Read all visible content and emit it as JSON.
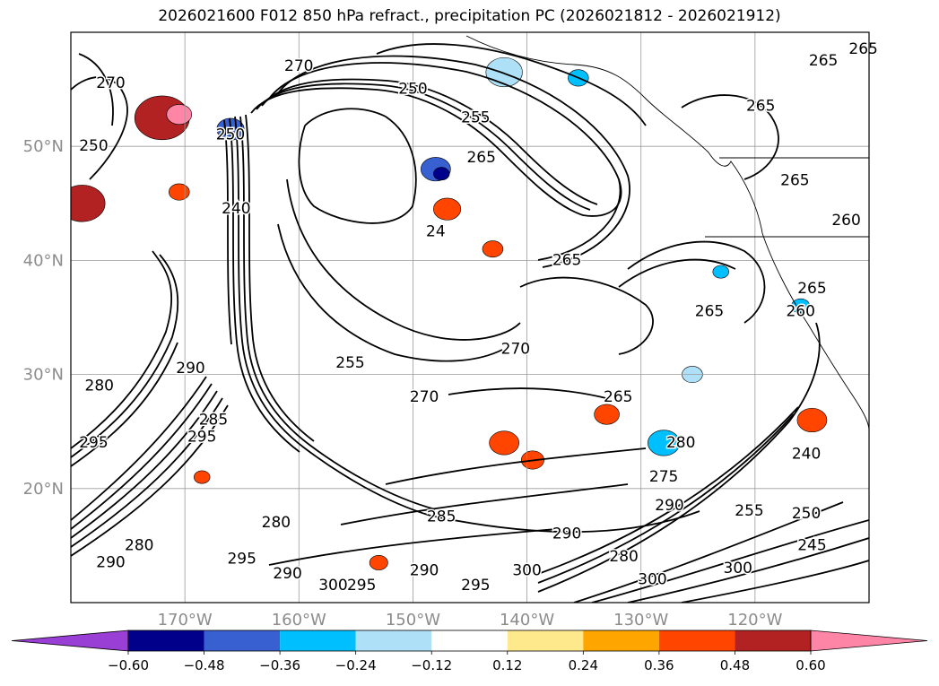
{
  "title": "2026021600 F012 850 hPa refract., precipitation PC (2026021812 - 2026021912)",
  "chart_data": {
    "type": "heatmap",
    "title": "2026021600 F012 850 hPa refract., precipitation PC (2026021812 - 2026021912)",
    "map": {
      "lon_range": [
        -180,
        -110
      ],
      "lat_range": [
        10,
        60
      ],
      "lon_ticks": [
        -170,
        -160,
        -150,
        -140,
        -130,
        -120
      ],
      "lon_tick_labels": [
        "170°W",
        "160°W",
        "150°W",
        "140°W",
        "130°W",
        "120°W"
      ],
      "lat_ticks": [
        20,
        30,
        40,
        50
      ],
      "lat_tick_labels": [
        "20°N",
        "30°N",
        "40°N",
        "50°N"
      ],
      "grid": true
    },
    "colorbar": {
      "orientation": "horizontal",
      "extend": "both",
      "bounds": [
        -0.6,
        -0.48,
        -0.36,
        -0.24,
        -0.12,
        0.12,
        0.24,
        0.36,
        0.48,
        0.6
      ],
      "tick_labels": [
        "−0.60",
        "−0.48",
        "−0.36",
        "−0.24",
        "−0.12",
        "0.12",
        "0.24",
        "0.36",
        "0.48",
        "0.60"
      ],
      "colors": [
        "#9a3fd6",
        "#00008b",
        "#3860d0",
        "#00bfff",
        "#aee0f7",
        "#ffffff",
        "#ffe98d",
        "#ffa500",
        "#ff4500",
        "#b22222",
        "#ff85a7"
      ]
    },
    "contour_labels": [
      {
        "text": "270",
        "lon": -176.5,
        "lat": 55.5
      },
      {
        "text": "250",
        "lon": -166.0,
        "lat": 51.0
      },
      {
        "text": "240",
        "lon": -165.5,
        "lat": 44.5
      },
      {
        "text": "250",
        "lon": -150.0,
        "lat": 55.0
      },
      {
        "text": "255",
        "lon": -144.5,
        "lat": 52.5
      },
      {
        "text": "265",
        "lon": -144.0,
        "lat": 49.0
      },
      {
        "text": "24",
        "lon": -148.0,
        "lat": 42.5
      },
      {
        "text": "265",
        "lon": -136.5,
        "lat": 40.0
      },
      {
        "text": "270",
        "lon": -141.0,
        "lat": 32.2
      },
      {
        "text": "270",
        "lon": -149.0,
        "lat": 28.0
      },
      {
        "text": "255",
        "lon": -155.5,
        "lat": 31.0
      },
      {
        "text": "265",
        "lon": -132.0,
        "lat": 28.0
      },
      {
        "text": "265",
        "lon": -119.5,
        "lat": 53.5
      },
      {
        "text": "265",
        "lon": -116.5,
        "lat": 47.0
      },
      {
        "text": "265",
        "lon": -114.0,
        "lat": 57.5
      },
      {
        "text": "265",
        "lon": -110.5,
        "lat": 58.5
      },
      {
        "text": "260",
        "lon": -112.0,
        "lat": 43.5
      },
      {
        "text": "265",
        "lon": -115.0,
        "lat": 37.5
      },
      {
        "text": "260",
        "lon": -116.0,
        "lat": 35.5
      },
      {
        "text": "265",
        "lon": -124.0,
        "lat": 35.5
      },
      {
        "text": "290",
        "lon": -169.5,
        "lat": 30.5
      },
      {
        "text": "295",
        "lon": -168.5,
        "lat": 24.5
      },
      {
        "text": "285",
        "lon": -167.5,
        "lat": 26.0
      },
      {
        "text": "280",
        "lon": -162.0,
        "lat": 17.0
      },
      {
        "text": "285",
        "lon": -147.5,
        "lat": 17.5
      },
      {
        "text": "295",
        "lon": -165.0,
        "lat": 13.8
      },
      {
        "text": "290",
        "lon": -161.0,
        "lat": 12.5
      },
      {
        "text": "300",
        "lon": -157.0,
        "lat": 11.5
      },
      {
        "text": "295",
        "lon": -154.5,
        "lat": 11.5
      },
      {
        "text": "290",
        "lon": -149.0,
        "lat": 12.8
      },
      {
        "text": "295",
        "lon": -144.5,
        "lat": 11.5
      },
      {
        "text": "300",
        "lon": -140.0,
        "lat": 12.8
      },
      {
        "text": "290",
        "lon": -136.5,
        "lat": 16.0
      },
      {
        "text": "280",
        "lon": -131.5,
        "lat": 14.0
      },
      {
        "text": "290",
        "lon": -127.5,
        "lat": 18.5
      },
      {
        "text": "275",
        "lon": -128.0,
        "lat": 21.0
      },
      {
        "text": "280",
        "lon": -126.5,
        "lat": 24.0
      },
      {
        "text": "255",
        "lon": -120.5,
        "lat": 18.0
      },
      {
        "text": "250",
        "lon": -115.5,
        "lat": 17.8
      },
      {
        "text": "240",
        "lon": -115.5,
        "lat": 23.0
      },
      {
        "text": "245",
        "lon": -115.0,
        "lat": 15.0
      },
      {
        "text": "300",
        "lon": -121.5,
        "lat": 13.0
      },
      {
        "text": "300",
        "lon": -129.0,
        "lat": 12.0
      },
      {
        "text": "295",
        "lon": -178.0,
        "lat": 24.0
      },
      {
        "text": "290",
        "lon": -176.5,
        "lat": 13.5
      },
      {
        "text": "280",
        "lon": -174.0,
        "lat": 15.0
      },
      {
        "text": "280",
        "lon": -177.5,
        "lat": 29.0
      },
      {
        "text": "250",
        "lon": -178.0,
        "lat": 50.0
      },
      {
        "text": "270",
        "lon": -160.0,
        "lat": 57.0
      }
    ],
    "precip_regions": [
      {
        "value": 0.48,
        "lon": -172.0,
        "lat": 52.5,
        "r": 2.4
      },
      {
        "value": 0.6,
        "lon": -170.5,
        "lat": 52.8,
        "r": 1.1
      },
      {
        "value": 0.48,
        "lon": -179.0,
        "lat": 45.0,
        "r": 2.0
      },
      {
        "value": 0.36,
        "lon": -147.0,
        "lat": 44.5,
        "r": 1.2
      },
      {
        "value": 0.36,
        "lon": -143.0,
        "lat": 41.0,
        "r": 0.9
      },
      {
        "value": 0.36,
        "lon": -142.0,
        "lat": 24.0,
        "r": 1.3
      },
      {
        "value": 0.36,
        "lon": -139.5,
        "lat": 22.5,
        "r": 1.0
      },
      {
        "value": 0.36,
        "lon": -133.0,
        "lat": 26.5,
        "r": 1.1
      },
      {
        "value": 0.36,
        "lon": -115.0,
        "lat": 26.0,
        "r": 1.3
      },
      {
        "value": 0.36,
        "lon": -153.0,
        "lat": 13.5,
        "r": 0.8
      },
      {
        "value": 0.36,
        "lon": -168.5,
        "lat": 21.0,
        "r": 0.7
      },
      {
        "value": 0.36,
        "lon": -170.5,
        "lat": 46.0,
        "r": 0.9
      },
      {
        "value": -0.48,
        "lon": -148.0,
        "lat": 48.0,
        "r": 1.3
      },
      {
        "value": -0.6,
        "lon": -147.5,
        "lat": 47.6,
        "r": 0.7
      },
      {
        "value": -0.48,
        "lon": -166.0,
        "lat": 51.5,
        "r": 1.2
      },
      {
        "value": -0.36,
        "lon": -128.0,
        "lat": 24.0,
        "r": 1.4
      },
      {
        "value": -0.36,
        "lon": -116.0,
        "lat": 36.0,
        "r": 0.8
      },
      {
        "value": -0.36,
        "lon": -135.5,
        "lat": 56.0,
        "r": 0.9
      },
      {
        "value": -0.24,
        "lon": -142.0,
        "lat": 56.5,
        "r": 1.6
      },
      {
        "value": -0.24,
        "lon": -125.5,
        "lat": 30.0,
        "r": 0.9
      },
      {
        "value": -0.36,
        "lon": -123.0,
        "lat": 39.0,
        "r": 0.7
      }
    ]
  }
}
